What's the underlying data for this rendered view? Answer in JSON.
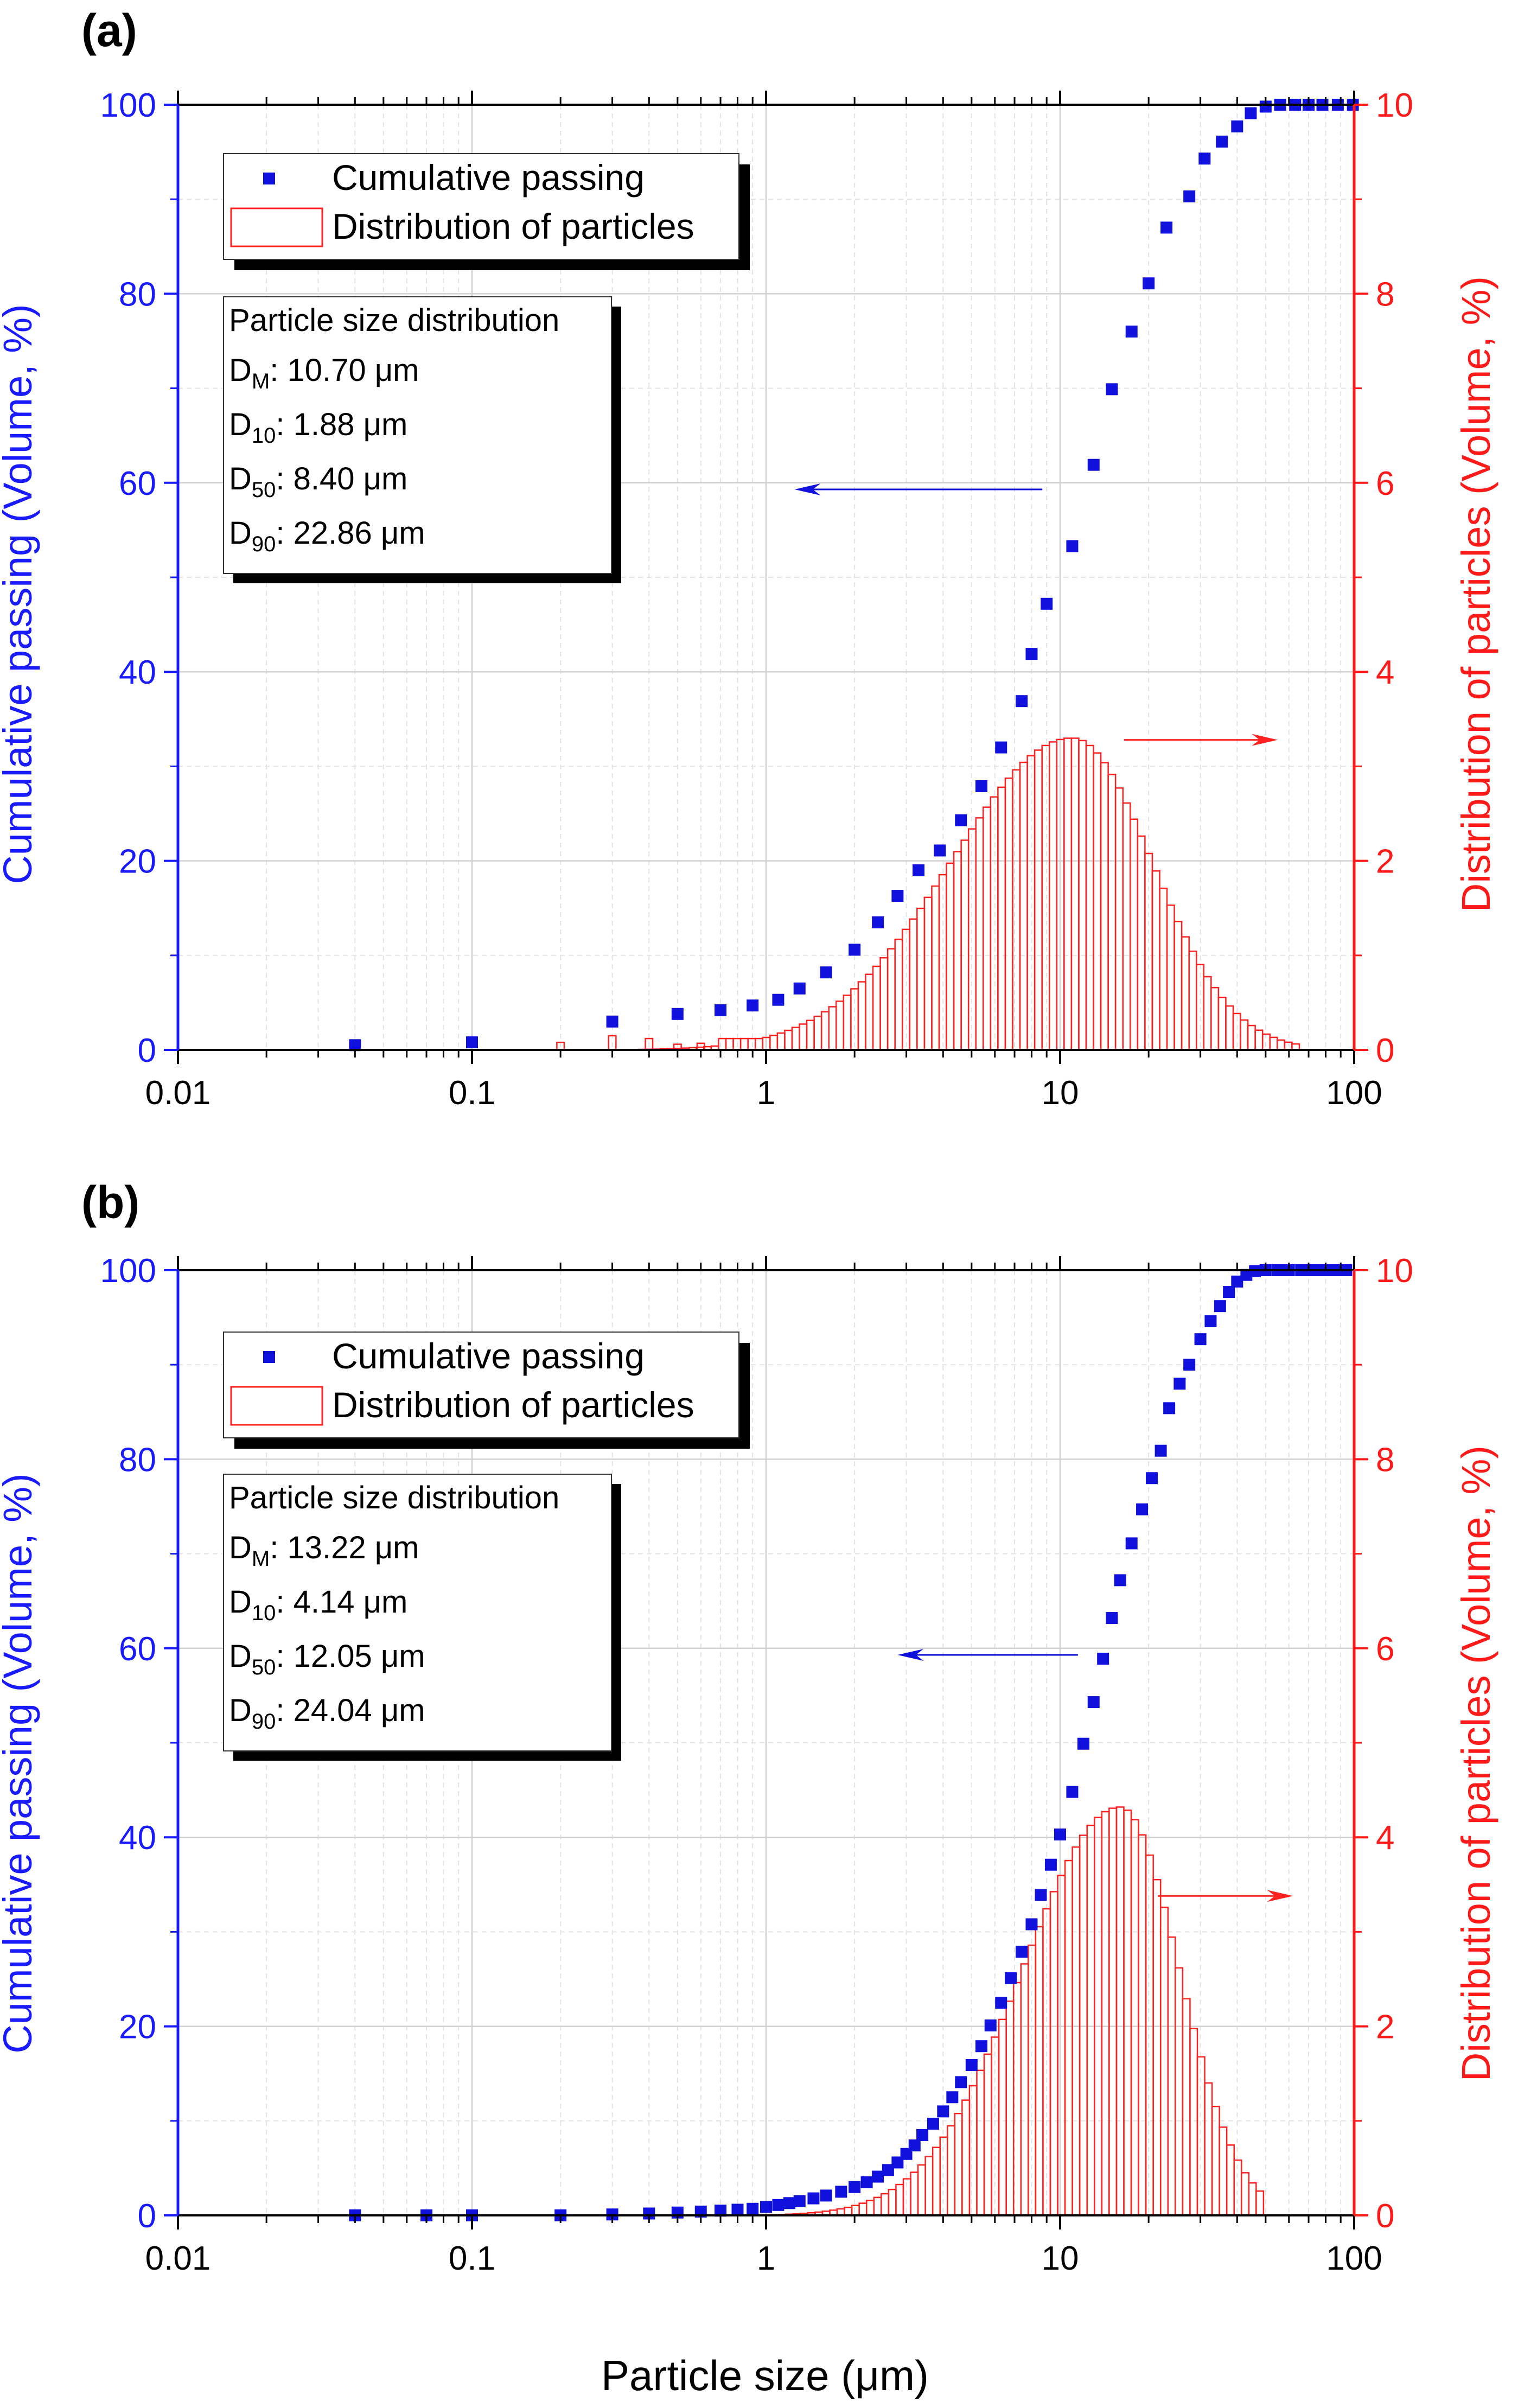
{
  "figure": {
    "xlabel": "Particle size (μm)",
    "colors": {
      "cum": "#1111dd",
      "dist": "#ff2020",
      "axis_left": "#1a1aff",
      "axis_right": "#ff1a1a"
    }
  },
  "chart_data": [
    {
      "type": "scatter+bar",
      "panel_label": "(a)",
      "xscale": "log",
      "xlim": [
        0.01,
        100
      ],
      "x_ticks": [
        0.01,
        0.1,
        1,
        10,
        100
      ],
      "x_tick_labels": [
        "0.01",
        "0.1",
        "1",
        "10",
        "100"
      ],
      "ylabel_left": "Cumulative passing (Volume, %)",
      "ylabel_right": "Distribution of particles (Volume, %)",
      "ylim_left": [
        0,
        100
      ],
      "ylim_right": [
        0,
        10
      ],
      "y_ticks_left": [
        0,
        20,
        40,
        60,
        80,
        100
      ],
      "y_ticks_right": [
        0,
        2,
        4,
        6,
        8,
        10
      ],
      "grid": true,
      "legend": {
        "cum_label": "Cumulative passing",
        "dist_label": "Distribution of particles",
        "position": "top-left"
      },
      "stats": {
        "title": "Particle size distribution",
        "rows": [
          {
            "sym": "D",
            "sub": "M",
            "val": ": 10.70 μm"
          },
          {
            "sym": "D",
            "sub": "10",
            "val": ": 1.88 μm"
          },
          {
            "sym": "D",
            "sub": "50",
            "val": ": 8.40 μm"
          },
          {
            "sym": "D",
            "sub": "90",
            "val": ": 22.86 μm"
          }
        ]
      },
      "arrows": [
        {
          "series": "cum",
          "from": [
            8.7,
            59.3
          ],
          "to": [
            1.25,
            59.3
          ]
        },
        {
          "series": "dist",
          "from": [
            16.5,
            3.28
          ],
          "to": [
            55,
            3.28
          ]
        }
      ],
      "cumulative": {
        "x": [
          0.04,
          0.1,
          0.3,
          0.5,
          0.7,
          0.9,
          1.1,
          1.3,
          1.6,
          2.0,
          2.4,
          2.8,
          3.3,
          3.9,
          4.6,
          5.4,
          6.3,
          7.4,
          8.0,
          9.0,
          11.0,
          13.0,
          15.0,
          17.5,
          20.0,
          23.0,
          27.5,
          31.0,
          35.5,
          40.0,
          44.5,
          50.0,
          56.0,
          63.0,
          70.0,
          78.0,
          88.0,
          99.0
        ],
        "y": [
          0.5,
          0.8,
          3.0,
          3.8,
          4.2,
          4.7,
          5.3,
          6.5,
          8.2,
          10.6,
          13.5,
          16.3,
          19.0,
          21.1,
          24.3,
          27.9,
          32.0,
          36.9,
          41.9,
          47.2,
          53.3,
          61.9,
          69.9,
          76.0,
          81.1,
          87.0,
          90.3,
          94.3,
          96.1,
          97.7,
          99.1,
          99.8,
          100.0,
          100.0,
          100.0,
          100.0,
          100.0,
          100.0
        ],
        "marker": "square"
      },
      "distribution": {
        "bins_per_decade": 40,
        "x_start": 0.2,
        "x_end": 65,
        "sparse": [
          [
            0.2,
            0.08
          ],
          [
            0.3,
            0.15
          ],
          [
            0.4,
            0.12
          ],
          [
            0.5,
            0.06
          ],
          [
            0.6,
            0.07
          ]
        ],
        "peak_x": 11.0,
        "peak_y": 3.3,
        "sigma_left": 0.41,
        "sigma_right": 0.27,
        "tail_start": 0.7,
        "tail_value": 0.12
      }
    },
    {
      "type": "scatter+bar",
      "panel_label": "(b)",
      "xscale": "log",
      "xlim": [
        0.01,
        100
      ],
      "x_ticks": [
        0.01,
        0.1,
        1,
        10,
        100
      ],
      "x_tick_labels": [
        "0.01",
        "0.1",
        "1",
        "10",
        "100"
      ],
      "ylabel_left": "Cumulative passing (Volume, %)",
      "ylabel_right": "Distribution of particles (Volume, %)",
      "ylim_left": [
        0,
        100
      ],
      "ylim_right": [
        0,
        10
      ],
      "y_ticks_left": [
        0,
        20,
        40,
        60,
        80,
        100
      ],
      "y_ticks_right": [
        0,
        2,
        4,
        6,
        8,
        10
      ],
      "grid": true,
      "legend": {
        "cum_label": "Cumulative passing",
        "dist_label": "Distribution of particles",
        "position": "top-left"
      },
      "stats": {
        "title": "Particle size distribution",
        "rows": [
          {
            "sym": "D",
            "sub": "M",
            "val": ": 13.22 μm"
          },
          {
            "sym": "D",
            "sub": "10",
            "val": ": 4.14 μm"
          },
          {
            "sym": "D",
            "sub": "50",
            "val": ": 12.05 μm"
          },
          {
            "sym": "D",
            "sub": "90",
            "val": ": 24.04 μm"
          }
        ]
      },
      "arrows": [
        {
          "series": "cum",
          "from": [
            11.5,
            59.3
          ],
          "to": [
            2.8,
            59.3
          ]
        },
        {
          "series": "dist",
          "from": [
            21.5,
            3.38
          ],
          "to": [
            62,
            3.38
          ]
        }
      ],
      "cumulative": {
        "x": [
          0.04,
          0.07,
          0.1,
          0.2,
          0.3,
          0.4,
          0.5,
          0.6,
          0.7,
          0.8,
          0.9,
          1.0,
          1.1,
          1.2,
          1.3,
          1.45,
          1.6,
          1.8,
          2.0,
          2.2,
          2.4,
          2.6,
          2.8,
          3.0,
          3.2,
          3.4,
          3.7,
          4.0,
          4.3,
          4.6,
          5.0,
          5.4,
          5.8,
          6.3,
          6.8,
          7.4,
          8.0,
          8.6,
          9.3,
          10.0,
          11.0,
          12.0,
          13.0,
          14.0,
          15.0,
          16.0,
          17.5,
          19.0,
          20.5,
          22.0,
          23.5,
          25.5,
          27.5,
          30.0,
          32.5,
          35.0,
          37.5,
          40.0,
          43.0,
          46.0,
          50.0,
          55.0,
          60.0,
          66.0,
          72.0,
          79.0,
          86.0,
          94.0
        ],
        "y": [
          0.0,
          0.0,
          0.0,
          0.0,
          0.1,
          0.2,
          0.3,
          0.4,
          0.5,
          0.6,
          0.7,
          0.9,
          1.1,
          1.3,
          1.5,
          1.8,
          2.1,
          2.5,
          3.0,
          3.5,
          4.1,
          4.8,
          5.6,
          6.5,
          7.4,
          8.5,
          9.7,
          11.0,
          12.5,
          14.1,
          15.9,
          17.9,
          20.1,
          22.5,
          25.1,
          27.9,
          30.8,
          33.9,
          37.1,
          40.3,
          44.8,
          49.9,
          54.3,
          58.9,
          63.2,
          67.2,
          71.1,
          74.7,
          78.0,
          80.9,
          85.4,
          88.0,
          90.0,
          92.7,
          94.6,
          96.2,
          97.7,
          98.8,
          99.5,
          99.9,
          100.0,
          100.0,
          100.0,
          100.0,
          100.0,
          100.0,
          100.0,
          100.0
        ],
        "marker": "square"
      },
      "distribution": {
        "bins_per_decade": 40,
        "x_start": 0.9,
        "x_end": 48,
        "sparse": [],
        "peak_x": 16.0,
        "peak_y": 4.32,
        "sigma_left": 0.33,
        "sigma_right": 0.2,
        "tail_start": 0.9,
        "tail_value": 0.0
      }
    }
  ]
}
